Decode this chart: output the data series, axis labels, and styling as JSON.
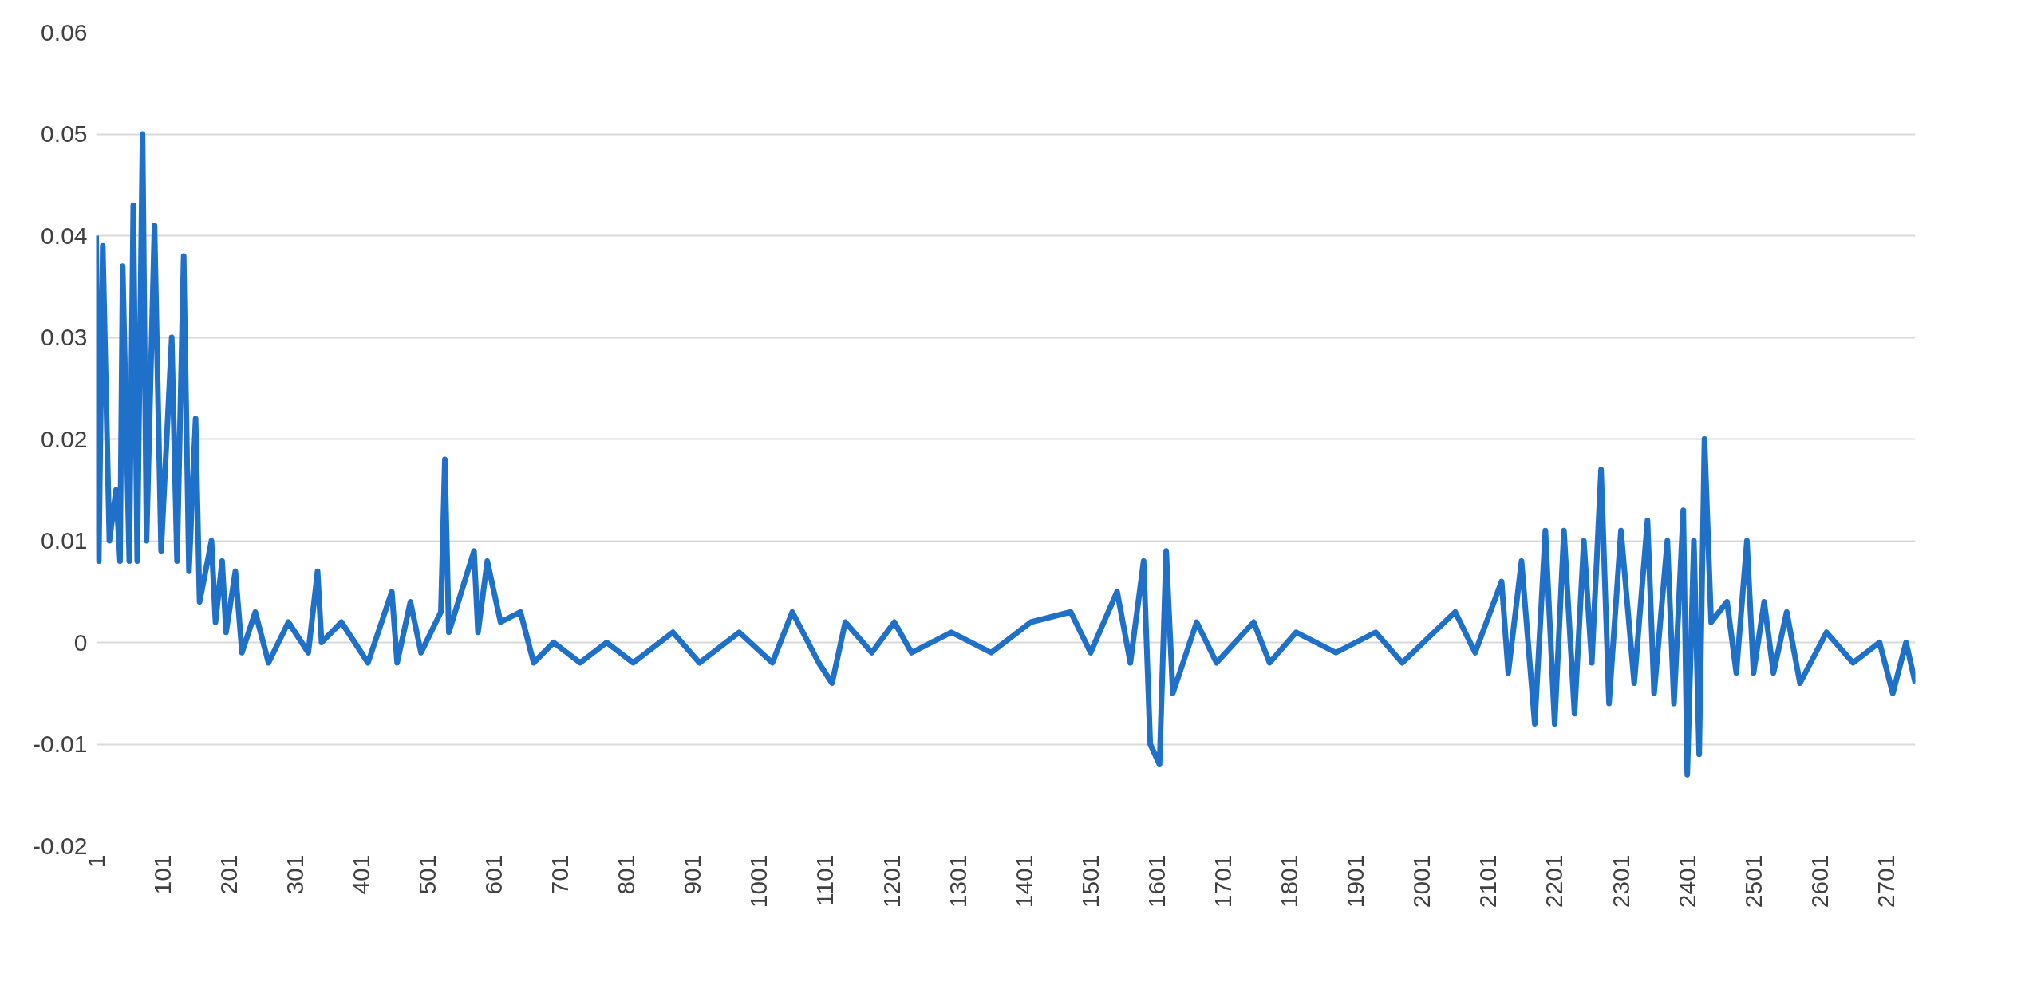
{
  "chart_data": {
    "type": "line",
    "x": [
      1,
      5,
      11,
      21,
      31,
      37,
      41,
      51,
      57,
      63,
      71,
      77,
      89,
      99,
      115,
      123,
      133,
      141,
      151,
      157,
      175,
      181,
      191,
      197,
      211,
      221,
      241,
      261,
      291,
      321,
      335,
      341,
      371,
      411,
      447,
      455,
      475,
      491,
      521,
      527,
      533,
      571,
      577,
      591,
      611,
      641,
      661,
      691,
      731,
      771,
      811,
      871,
      911,
      971,
      1021,
      1051,
      1091,
      1111,
      1131,
      1171,
      1205,
      1231,
      1291,
      1351,
      1411,
      1471,
      1501,
      1541,
      1561,
      1581,
      1591,
      1605,
      1615,
      1625,
      1661,
      1691,
      1747,
      1771,
      1811,
      1871,
      1931,
      1971,
      2051,
      2081,
      2121,
      2131,
      2151,
      2171,
      2187,
      2201,
      2215,
      2231,
      2245,
      2257,
      2271,
      2283,
      2301,
      2321,
      2341,
      2351,
      2371,
      2381,
      2395,
      2401,
      2411,
      2419,
      2427,
      2437,
      2461,
      2475,
      2491,
      2501,
      2517,
      2531,
      2551,
      2571,
      2611,
      2651,
      2691,
      2711,
      2731,
      2745
    ],
    "series": [
      {
        "color": "#1f70c8",
        "values": [
          0.04,
          0.008,
          0.039,
          0.01,
          0.015,
          0.008,
          0.037,
          0.008,
          0.043,
          0.008,
          0.05,
          0.01,
          0.041,
          0.009,
          0.03,
          0.008,
          0.038,
          0.007,
          0.022,
          0.004,
          0.01,
          0.002,
          0.008,
          0.001,
          0.007,
          -0.001,
          0.003,
          -0.002,
          0.002,
          -0.001,
          0.007,
          0.0,
          0.002,
          -0.002,
          0.005,
          -0.002,
          0.004,
          -0.001,
          0.003,
          0.018,
          0.001,
          0.009,
          0.001,
          0.008,
          0.002,
          0.003,
          -0.002,
          0.0,
          -0.002,
          0.0,
          -0.002,
          0.001,
          -0.002,
          0.001,
          -0.002,
          0.003,
          -0.002,
          -0.004,
          0.002,
          -0.001,
          0.002,
          -0.001,
          0.001,
          -0.001,
          0.002,
          0.003,
          -0.001,
          0.005,
          -0.002,
          0.008,
          -0.01,
          -0.012,
          0.009,
          -0.005,
          0.002,
          -0.002,
          0.002,
          -0.002,
          0.001,
          -0.001,
          0.001,
          -0.002,
          0.003,
          -0.001,
          0.006,
          -0.003,
          0.008,
          -0.008,
          0.011,
          -0.008,
          0.011,
          -0.007,
          0.01,
          -0.002,
          0.017,
          -0.006,
          0.011,
          -0.004,
          0.012,
          -0.005,
          0.01,
          -0.006,
          0.013,
          -0.013,
          0.01,
          -0.011,
          0.02,
          0.002,
          0.004,
          -0.003,
          0.01,
          -0.003,
          0.004,
          -0.003,
          0.003,
          -0.004,
          0.001,
          -0.002,
          0.0,
          -0.005,
          0.0,
          -0.004
        ]
      }
    ],
    "xlim": [
      1,
      2745
    ],
    "xticks": [
      1,
      101,
      201,
      301,
      401,
      501,
      601,
      701,
      801,
      901,
      1001,
      1101,
      1201,
      1301,
      1401,
      1501,
      1601,
      1701,
      1801,
      1901,
      2001,
      2101,
      2201,
      2301,
      2401,
      2501,
      2601,
      2701
    ],
    "ylim": [
      -0.02,
      0.06
    ],
    "yticks": [
      -0.02,
      -0.01,
      0,
      0.01,
      0.02,
      0.03,
      0.04,
      0.05,
      0.06
    ],
    "grid": "y",
    "line_style": "solid"
  }
}
